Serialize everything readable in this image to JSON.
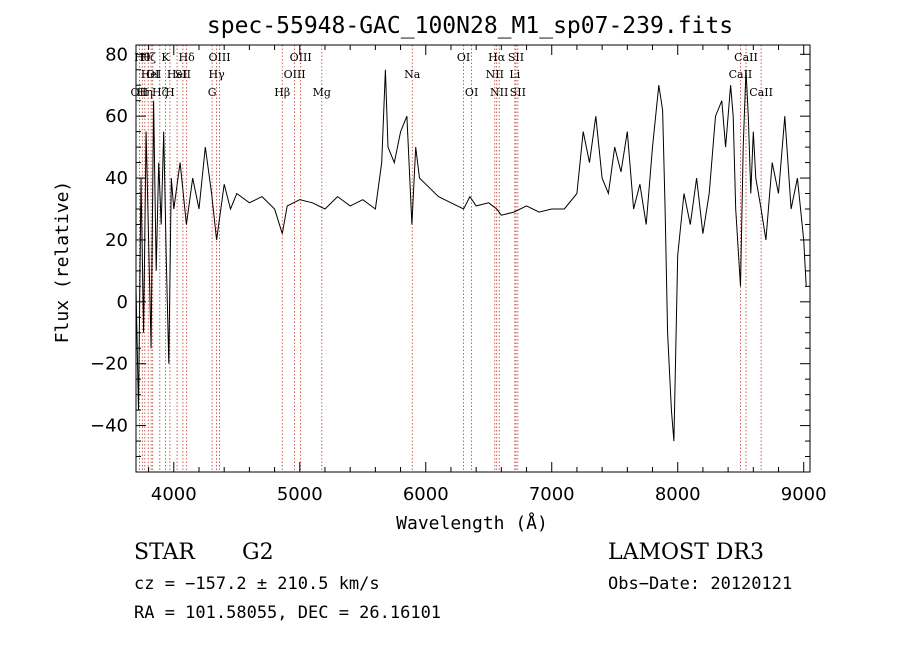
{
  "chart_data": {
    "type": "line",
    "title": "spec-55948-GAC_100N28_M1_sp07-239.fits",
    "xlabel": "Wavelength (Å)",
    "ylabel": "Flux (relative)",
    "xlim": [
      3700,
      9050
    ],
    "ylim": [
      -55,
      83
    ],
    "xticks": [
      4000,
      5000,
      6000,
      7000,
      8000,
      9000
    ],
    "yticks": [
      -40,
      -20,
      0,
      20,
      40,
      60,
      80
    ],
    "grid": false,
    "series": [
      {
        "name": "spectrum",
        "x": [
          3700,
          3720,
          3740,
          3760,
          3780,
          3800,
          3820,
          3840,
          3860,
          3880,
          3900,
          3920,
          3940,
          3960,
          3980,
          4000,
          4050,
          4100,
          4150,
          4200,
          4250,
          4300,
          4340,
          4400,
          4450,
          4500,
          4600,
          4700,
          4800,
          4861,
          4900,
          5000,
          5100,
          5200,
          5300,
          5400,
          5500,
          5600,
          5650,
          5680,
          5700,
          5750,
          5800,
          5850,
          5890,
          5920,
          5950,
          6000,
          6100,
          6200,
          6300,
          6350,
          6400,
          6500,
          6563,
          6600,
          6700,
          6800,
          6900,
          7000,
          7100,
          7200,
          7250,
          7300,
          7350,
          7400,
          7450,
          7500,
          7550,
          7600,
          7650,
          7700,
          7750,
          7800,
          7850,
          7880,
          7900,
          7920,
          7950,
          7970,
          8000,
          8050,
          8100,
          8150,
          8200,
          8250,
          8300,
          8350,
          8380,
          8420,
          8440,
          8460,
          8498,
          8520,
          8542,
          8560,
          8580,
          8600,
          8620,
          8662,
          8700,
          8750,
          8800,
          8850,
          8900,
          8950,
          9000,
          9020
        ],
        "y": [
          5,
          -35,
          40,
          -10,
          55,
          20,
          -15,
          65,
          10,
          45,
          25,
          55,
          15,
          -20,
          40,
          30,
          45,
          25,
          40,
          30,
          50,
          35,
          20,
          38,
          30,
          35,
          32,
          34,
          30,
          22,
          31,
          33,
          32,
          30,
          34,
          31,
          33,
          30,
          45,
          75,
          50,
          45,
          55,
          60,
          25,
          50,
          40,
          38,
          34,
          32,
          30,
          34,
          31,
          32,
          30,
          28,
          29,
          31,
          29,
          30,
          30,
          35,
          55,
          45,
          60,
          40,
          35,
          50,
          42,
          55,
          30,
          38,
          25,
          50,
          70,
          62,
          30,
          -10,
          -35,
          -45,
          15,
          35,
          25,
          40,
          22,
          35,
          60,
          65,
          50,
          70,
          60,
          30,
          5,
          50,
          75,
          60,
          35,
          55,
          40,
          30,
          20,
          45,
          35,
          60,
          30,
          40,
          20,
          5
        ]
      }
    ],
    "lines": [
      {
        "wave": 3727,
        "label": "OII",
        "row": 3
      },
      {
        "wave": 3750,
        "label": "Hθ",
        "row": 1
      },
      {
        "wave": 3770,
        "label": "Hη",
        "row": 3
      },
      {
        "wave": 3797,
        "label": "Hζ",
        "row": 1
      },
      {
        "wave": 3820,
        "label": "HeI",
        "row": 2
      },
      {
        "wave": 3833,
        "label": "OI",
        "row": 2
      },
      {
        "wave": 3889,
        "label": "Hζ",
        "row": 3
      },
      {
        "wave": 3934,
        "label": "K",
        "row": 1
      },
      {
        "wave": 3969,
        "label": "H",
        "row": 3
      },
      {
        "wave": 4026,
        "label": "HeI",
        "row": 2
      },
      {
        "wave": 4072,
        "label": "SII",
        "row": 2
      },
      {
        "wave": 4102,
        "label": "Hδ",
        "row": 1
      },
      {
        "wave": 4304,
        "label": "G",
        "row": 3
      },
      {
        "wave": 4340,
        "label": "Hγ",
        "row": 2
      },
      {
        "wave": 4363,
        "label": "OIII",
        "row": 1
      },
      {
        "wave": 4861,
        "label": "Hβ",
        "row": 3
      },
      {
        "wave": 4959,
        "label": "OIII",
        "row": 2
      },
      {
        "wave": 5007,
        "label": "OIII",
        "row": 1
      },
      {
        "wave": 5175,
        "label": "Mg",
        "row": 3
      },
      {
        "wave": 5893,
        "label": "Na",
        "row": 2
      },
      {
        "wave": 6300,
        "label": "OI",
        "row": 1
      },
      {
        "wave": 6364,
        "label": "OI",
        "row": 3
      },
      {
        "wave": 6548,
        "label": "NII",
        "row": 2
      },
      {
        "wave": 6563,
        "label": "Hα",
        "row": 1
      },
      {
        "wave": 6583,
        "label": "NII",
        "row": 3
      },
      {
        "wave": 6707,
        "label": "Li",
        "row": 2
      },
      {
        "wave": 6716,
        "label": "SII",
        "row": 1
      },
      {
        "wave": 6731,
        "label": "SII",
        "row": 3
      },
      {
        "wave": 8498,
        "label": "CaII",
        "row": 2
      },
      {
        "wave": 8542,
        "label": "CaII",
        "row": 1
      },
      {
        "wave": 8662,
        "label": "CaII",
        "row": 3
      }
    ]
  },
  "info": {
    "class_label": "STAR",
    "subclass_label": "G2",
    "survey": "LAMOST DR3",
    "cz": "cz = −157.2 ± 210.5 km/s",
    "obs_date": "Obs−Date: 20120121",
    "radec": "RA = 101.58055, DEC =  26.16101"
  },
  "colors": {
    "spectrum": "#000000",
    "marker_lines": "#c0392b",
    "axes": "#000000"
  }
}
